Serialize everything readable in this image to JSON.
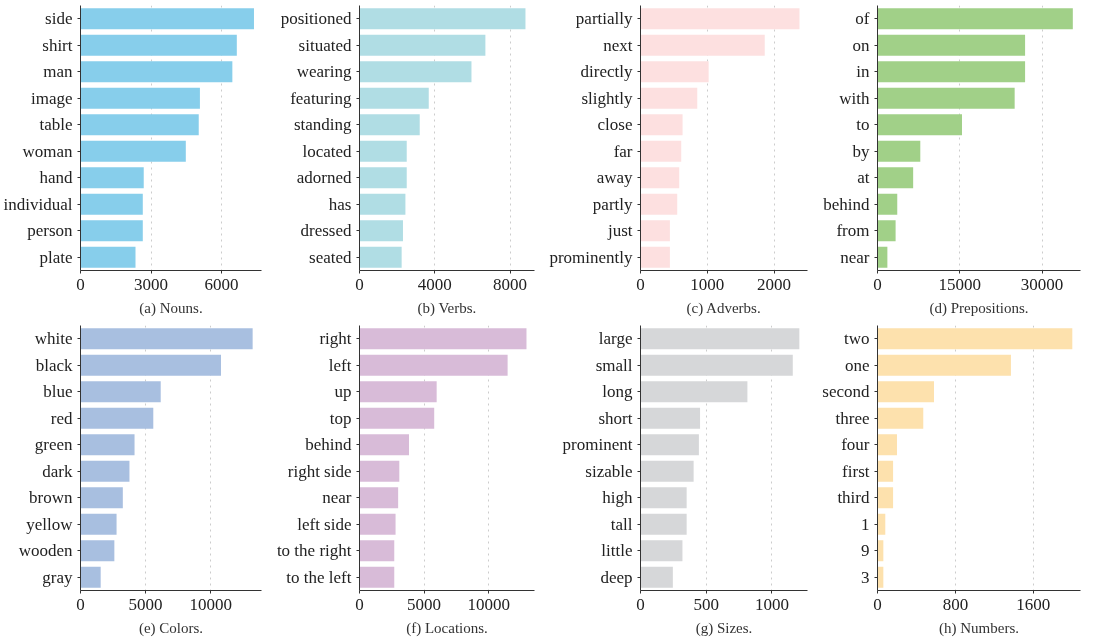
{
  "chart_data": [
    {
      "type": "bar",
      "orientation": "horizontal",
      "title": "(a) Nouns.",
      "categories": [
        "side",
        "shirt",
        "man",
        "image",
        "table",
        "woman",
        "hand",
        "individual",
        "person",
        "plate"
      ],
      "values": [
        7380,
        6650,
        6460,
        5080,
        5030,
        4480,
        2690,
        2650,
        2650,
        2340
      ],
      "color": "#87ceeb",
      "xlim": [
        0,
        7700
      ],
      "xticks": [
        0,
        3000,
        6000
      ],
      "grid": "x"
    },
    {
      "type": "bar",
      "orientation": "horizontal",
      "title": "(b) Verbs.",
      "categories": [
        "positioned",
        "situated",
        "wearing",
        "featuring",
        "standing",
        "located",
        "adorned",
        "has",
        "dressed",
        "seated"
      ],
      "values": [
        8820,
        6690,
        5950,
        3680,
        3200,
        2510,
        2510,
        2440,
        2310,
        2240
      ],
      "color": "#b0dde4",
      "xlim": [
        0,
        9300
      ],
      "xticks": [
        0,
        4000,
        8000
      ],
      "grid": "x"
    },
    {
      "type": "bar",
      "orientation": "horizontal",
      "title": "(c) Adverbs.",
      "categories": [
        "partially",
        "next",
        "directly",
        "slightly",
        "close",
        "far",
        "away",
        "partly",
        "just",
        "prominently"
      ],
      "values": [
        2380,
        1860,
        1020,
        850,
        630,
        610,
        580,
        550,
        440,
        440
      ],
      "color": "#fde0e0",
      "xlim": [
        0,
        2500
      ],
      "xticks": [
        0,
        1000,
        2000
      ],
      "grid": "x"
    },
    {
      "type": "bar",
      "orientation": "horizontal",
      "title": "(d) Prepositions.",
      "categories": [
        "of",
        "on",
        "in",
        "with",
        "to",
        "by",
        "at",
        "behind",
        "from",
        "near"
      ],
      "values": [
        35600,
        26900,
        26900,
        25000,
        15400,
        7800,
        6500,
        3600,
        3300,
        1800
      ],
      "color": "#a1d088",
      "xlim": [
        0,
        37000
      ],
      "xticks": [
        0,
        15000,
        30000
      ],
      "grid": "x"
    },
    {
      "type": "bar",
      "orientation": "horizontal",
      "title": "(e) Colors.",
      "categories": [
        "white",
        "black",
        "blue",
        "red",
        "green",
        "dark",
        "brown",
        "yellow",
        "wooden",
        "gray"
      ],
      "values": [
        13220,
        10790,
        6160,
        5590,
        4150,
        3760,
        3250,
        2770,
        2600,
        1550
      ],
      "color": "#a8bfe0",
      "xlim": [
        0,
        13900
      ],
      "xticks": [
        0,
        5000,
        10000
      ],
      "grid": "x"
    },
    {
      "type": "bar",
      "orientation": "horizontal",
      "title": "(f) Locations.",
      "categories": [
        "right",
        "left",
        "up",
        "top",
        "behind",
        "right side",
        "near",
        "left side",
        "to the right",
        "to the left"
      ],
      "values": [
        12920,
        11460,
        5970,
        5780,
        3830,
        3080,
        2990,
        2790,
        2690,
        2690
      ],
      "color": "#d8bbd8",
      "xlim": [
        0,
        13540
      ],
      "xticks": [
        0,
        5000,
        10000
      ],
      "grid": "x"
    },
    {
      "type": "bar",
      "orientation": "horizontal",
      "title": "(g) Sizes.",
      "categories": [
        "large",
        "small",
        "long",
        "short",
        "prominent",
        "sizable",
        "high",
        "tall",
        "little",
        "deep"
      ],
      "values": [
        1208,
        1158,
        813,
        453,
        444,
        404,
        351,
        351,
        319,
        246
      ],
      "color": "#d6d7d9",
      "xlim": [
        0,
        1270
      ],
      "xticks": [
        0,
        500,
        1000
      ],
      "grid": "x"
    },
    {
      "type": "bar",
      "orientation": "horizontal",
      "title": "(h) Numbers.",
      "categories": [
        "two",
        "one",
        "second",
        "three",
        "four",
        "first",
        "third",
        "1",
        "9",
        "3"
      ],
      "values": [
        2000,
        1370,
        580,
        470,
        200,
        160,
        160,
        80,
        60,
        60
      ],
      "color": "#fde1ad",
      "xlim": [
        0,
        2084
      ],
      "xticks": [
        0,
        800,
        1600
      ],
      "grid": "x"
    }
  ]
}
